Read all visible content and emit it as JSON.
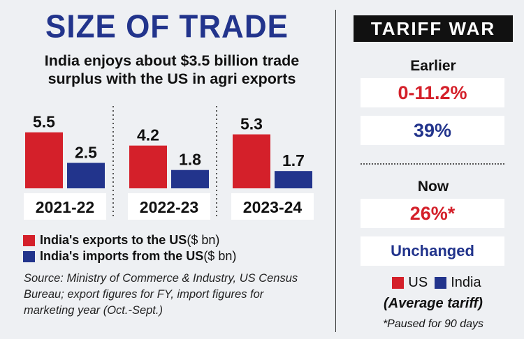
{
  "title": "SIZE OF TRADE",
  "subtitle": "India enjoys about $3.5 billion trade surplus with the US in agri exports",
  "colors": {
    "exports": "#d4202a",
    "imports": "#22348c",
    "title": "#22348c"
  },
  "chart_data": {
    "type": "bar",
    "title": "SIZE OF TRADE",
    "subtitle": "India enjoys about $3.5 billion trade surplus with the US in agri exports",
    "categories": [
      "2021-22",
      "2022-23",
      "2023-24"
    ],
    "series": [
      {
        "name": "India's exports to the US ($ bn)",
        "values": [
          5.5,
          4.2,
          5.3
        ],
        "value_labels": [
          "5.5",
          "4.2",
          "5.3"
        ],
        "color": "#d4202a"
      },
      {
        "name": "India's imports from the US ($ bn)",
        "values": [
          2.5,
          1.8,
          1.7
        ],
        "value_labels": [
          "2.5",
          "1.8",
          "1.7"
        ],
        "color": "#22348c"
      }
    ],
    "legend_position": "bottom"
  },
  "legend": {
    "exports_bold": "India's exports to the US",
    "exports_unit": " ($ bn)",
    "imports_bold": "India's imports from the US",
    "imports_unit": " ($ bn)"
  },
  "source": "Source: Ministry of Commerce & Industry, US Census Bureau; export figures for FY, import figures for marketing year (Oct.-Sept.)",
  "tariff": {
    "heading": "TARIFF WAR",
    "earlier_label": "Earlier",
    "earlier_us": "0-11.2%",
    "earlier_india": "39%",
    "now_label": "Now",
    "now_us": "26%*",
    "now_india": "Unchanged",
    "legend_us": "US",
    "legend_india": "India",
    "average_note": "(Average tariff)",
    "footnote": "*Paused for 90 days"
  }
}
